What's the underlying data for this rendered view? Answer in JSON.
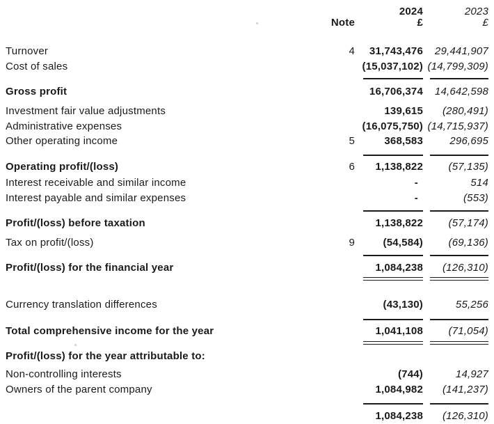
{
  "document": {
    "type": "profit-and-loss-statement",
    "colors": {
      "text": "#1a1a1a",
      "background": "#ffffff"
    },
    "header": {
      "note_label": "Note",
      "year_2024": "2024",
      "year_2023": "2023",
      "currency_2024": "£",
      "currency_2023": "£"
    },
    "rows": [
      {
        "label": "Turnover",
        "note": "4",
        "y2024": "31,743,476",
        "y2023": "29,441,907"
      },
      {
        "label": "Cost of sales",
        "note": "",
        "y2024": "(15,037,102)",
        "y2023": "(14,799,309)"
      },
      {
        "label": "Gross profit",
        "note": "",
        "y2024": "16,706,374",
        "y2023": "14,642,598",
        "bold": true
      },
      {
        "label": "Investment fair value adjustments",
        "note": "",
        "y2024": "139,615",
        "y2023": "(280,491)"
      },
      {
        "label": "Administrative expenses",
        "note": "",
        "y2024": "(16,075,750)",
        "y2023": "(14,715,937)"
      },
      {
        "label": "Other operating income",
        "note": "5",
        "y2024": "368,583",
        "y2023": "296,695"
      },
      {
        "label": "Operating profit/(loss)",
        "note": "6",
        "y2024": "1,138,822",
        "y2023": "(57,135)",
        "bold": true
      },
      {
        "label": "Interest receivable and similar income",
        "note": "",
        "y2024": "-",
        "y2023": "514"
      },
      {
        "label": "Interest payable and similar expenses",
        "note": "",
        "y2024": "-",
        "y2023": "(553)"
      },
      {
        "label": "Profit/(loss) before taxation",
        "note": "",
        "y2024": "1,138,822",
        "y2023": "(57,174)",
        "bold": true
      },
      {
        "label": "Tax on profit/(loss)",
        "note": "9",
        "y2024": "(54,584)",
        "y2023": "(69,136)"
      },
      {
        "label": "Profit/(loss) for the financial year",
        "note": "",
        "y2024": "1,084,238",
        "y2023": "(126,310)",
        "bold": true
      },
      {
        "label": "Currency translation differences",
        "note": "",
        "y2024": "(43,130)",
        "y2023": "55,256"
      },
      {
        "label": "Total comprehensive income for the year",
        "note": "",
        "y2024": "1,041,108",
        "y2023": "(71,054)",
        "bold": true
      },
      {
        "label": "Profit/(loss) for the year attributable to:",
        "note": "",
        "y2024": "",
        "y2023": "",
        "bold": true
      },
      {
        "label": "Non-controlling interests",
        "note": "",
        "y2024": "(744)",
        "y2023": "14,927"
      },
      {
        "label": "Owners of the parent company",
        "note": "",
        "y2024": "1,084,982",
        "y2023": "(141,237)"
      },
      {
        "label": "",
        "note": "",
        "y2024": "1,084,238",
        "y2023": "(126,310)"
      }
    ]
  }
}
